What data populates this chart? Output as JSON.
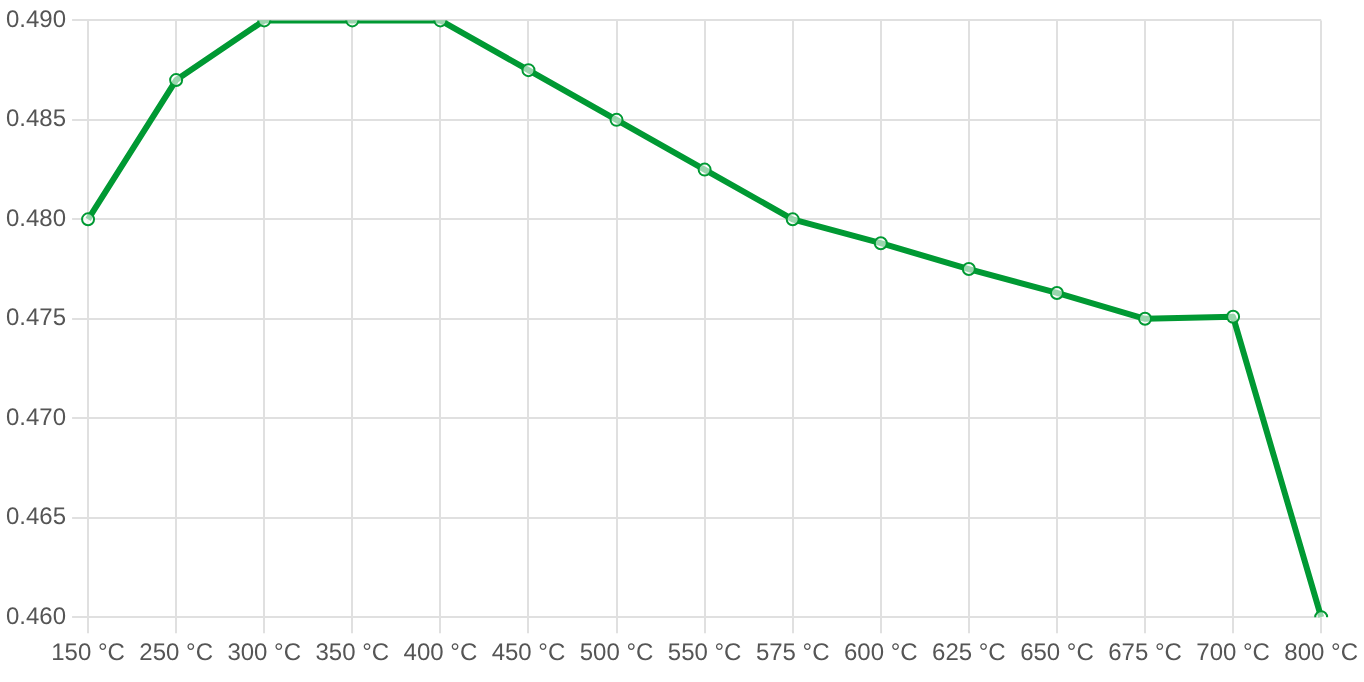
{
  "chart_data": {
    "type": "line",
    "categories": [
      "150 °C",
      "250 °C",
      "300 °C",
      "350 °C",
      "400 °C",
      "450 °C",
      "500 °C",
      "550 °C",
      "575 °C",
      "600 °C",
      "625 °C",
      "650 °C",
      "675 °C",
      "700 °C",
      "800 °C"
    ],
    "series": [
      {
        "color": "#009933",
        "values": [
          0.48,
          0.487,
          0.49,
          0.49,
          0.49,
          0.4875,
          0.485,
          0.4825,
          0.48,
          0.4788,
          0.4775,
          0.4763,
          0.475,
          0.4751,
          0.46
        ]
      }
    ],
    "ylim": [
      0.46,
      0.49
    ],
    "yticks": [
      {
        "value": 0.46,
        "label": "0.460"
      },
      {
        "value": 0.465,
        "label": "0.465"
      },
      {
        "value": 0.47,
        "label": "0.470"
      },
      {
        "value": 0.475,
        "label": "0.475"
      },
      {
        "value": 0.48,
        "label": "0.480"
      },
      {
        "value": 0.485,
        "label": "0.485"
      },
      {
        "value": 0.49,
        "label": "0.490"
      }
    ],
    "grid": true,
    "legend": false,
    "marker": "circle",
    "line_style": "solid"
  }
}
